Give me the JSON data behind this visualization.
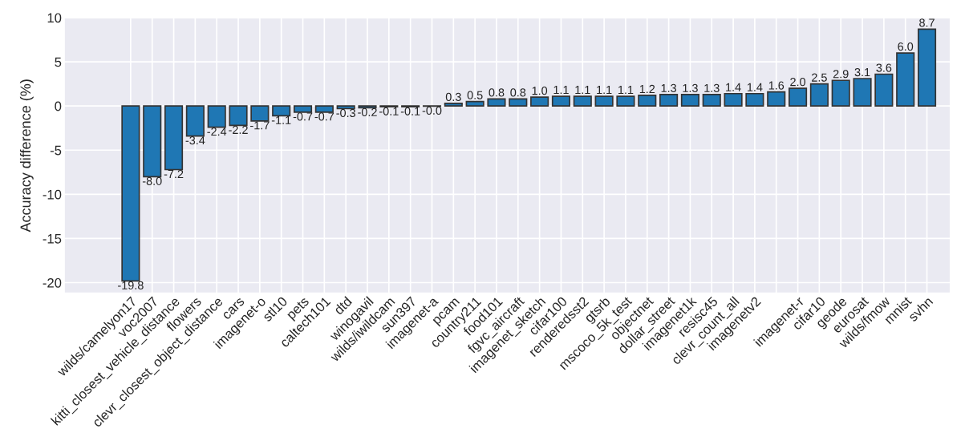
{
  "chart_data": {
    "type": "bar",
    "ylabel": "Accuracy difference (%)",
    "categories": [
      "wilds/camelyon17",
      "voc2007",
      "kitti_closest_vehicle_distance",
      "flowers",
      "clevr_closest_object_distance",
      "cars",
      "imagenet-o",
      "stl10",
      "pets",
      "caltech101",
      "dtd",
      "winogavil",
      "wilds/iwildcam",
      "sun397",
      "imagenet-a",
      "pcam",
      "country211",
      "food101",
      "fgvc_aircraft",
      "imagenet_sketch",
      "cifar100",
      "renderedsst2",
      "gtsrb",
      "mscoco_5k_test",
      "objectnet",
      "dollar_street",
      "imagenet1k",
      "resisc45",
      "clevr_count_all",
      "imagenetv2",
      null,
      "imagenet-r",
      "cifar10",
      "geode",
      "eurosat",
      "wilds/fmow",
      "mnist",
      "svhn"
    ],
    "values": [
      -19.8,
      -8.0,
      -7.2,
      -3.4,
      -2.4,
      -2.2,
      -1.7,
      -1.1,
      -0.7,
      -0.7,
      -0.3,
      -0.2,
      -0.1,
      -0.1,
      -0.02,
      0.3,
      0.5,
      0.8,
      0.8,
      1.0,
      1.1,
      1.1,
      1.1,
      1.1,
      1.2,
      1.3,
      1.3,
      1.3,
      1.4,
      1.4,
      1.6,
      2.0,
      2.5,
      2.9,
      3.1,
      3.6,
      6.0,
      8.7
    ],
    "value_labels": [
      "-19.8",
      "-8.0",
      "-7.2",
      "-3.4",
      "-2.4",
      "-2.2",
      "-1.7",
      "-1.1",
      "-0.7",
      "-0.7",
      "-0.3",
      "-0.2",
      "-0.1",
      "-0.1",
      "-0.0",
      "0.3",
      "0.5",
      "0.8",
      "0.8",
      "1.0",
      "1.1",
      "1.1",
      "1.1",
      "1.1",
      "1.2",
      "1.3",
      "1.3",
      "1.3",
      "1.4",
      "1.4",
      "1.6",
      "2.0",
      "2.5",
      "2.9",
      "3.1",
      "3.6",
      "6.0",
      "8.7"
    ],
    "color": "#1f77b4",
    "ylim": [
      -21.2,
      10
    ],
    "yticks": [
      -20,
      -15,
      -10,
      -5,
      0,
      5,
      10
    ],
    "grid": true
  }
}
